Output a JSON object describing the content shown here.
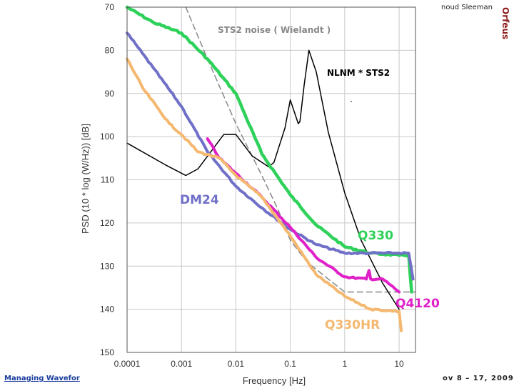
{
  "header": {
    "author": "noud Sleeman",
    "logo_text": "Orfeus"
  },
  "footer": {
    "left_text": "Managing Wavefor",
    "right_text": "ov 8 – 17, 2009"
  },
  "colors": {
    "sts2": "#888888",
    "nlnm": "#000000",
    "dm24": "#7070c8",
    "q330": "#2ed15a",
    "q4120": "#e020c8",
    "q330hr": "#f5b870",
    "grid": "#c8c8c8",
    "logo": "#8b1c1c"
  },
  "chart_data": {
    "type": "line",
    "xlabel": "Frequency   [Hz]",
    "ylabel": "PSD (10 * log (W/Hz))   [dB]",
    "x_scale": "log",
    "xlim": [
      0.0001,
      20
    ],
    "ylim": [
      150,
      70
    ],
    "x_ticks": [
      "0.0001",
      "0.001",
      "0.01",
      "0.1",
      "1",
      "10"
    ],
    "x_tick_values": [
      0.0001,
      0.001,
      0.01,
      0.1,
      1,
      10
    ],
    "y_ticks": [
      "70",
      "80",
      "90",
      "100",
      "110",
      "120",
      "130",
      "140",
      "150"
    ],
    "y_tick_values": [
      70,
      80,
      90,
      100,
      110,
      120,
      130,
      140,
      150
    ],
    "grid": true,
    "annotations": {
      "sts2": "STS2 noise ( Wielandt )",
      "nlnm": "NLNM * STS2",
      "dm24": "DM24",
      "q330": "Q330",
      "q4120": "Q4120",
      "q330hr": "Q330HR"
    },
    "series": [
      {
        "key": "sts2",
        "dashed": true,
        "x": [
          0.0012,
          0.003,
          0.01,
          0.03,
          0.06,
          0.1,
          0.2,
          0.5,
          1,
          2,
          5,
          10,
          20
        ],
        "y": [
          70,
          82,
          97,
          109,
          117,
          124,
          129,
          133,
          136,
          136,
          136,
          136,
          136
        ]
      },
      {
        "key": "nlnm",
        "dashed": false,
        "x": [
          0.0001,
          0.0005,
          0.0012,
          0.002,
          0.006,
          0.01,
          0.02,
          0.04,
          0.05,
          0.08,
          0.1,
          0.14,
          0.15,
          0.18,
          0.22,
          0.3,
          0.5,
          1,
          2,
          5,
          10
        ],
        "y": [
          101.5,
          106.5,
          109,
          107.5,
          99.5,
          99.5,
          104.5,
          107,
          106,
          98,
          91.5,
          97,
          96.5,
          88,
          80,
          85,
          99,
          113,
          124,
          134,
          140
        ]
      },
      {
        "key": "q330",
        "dashed": false,
        "x": [
          0.0001,
          0.0003,
          0.001,
          0.003,
          0.01,
          0.03,
          0.1,
          0.3,
          1,
          3,
          10,
          15,
          17
        ],
        "y": [
          70,
          73.5,
          76,
          82,
          90,
          104,
          113.5,
          120.5,
          125.5,
          127,
          127.5,
          127.5,
          136
        ]
      },
      {
        "key": "dm24",
        "dashed": false,
        "x": [
          0.0001,
          0.0003,
          0.001,
          0.003,
          0.01,
          0.03,
          0.1,
          0.3,
          1,
          3,
          10,
          15,
          18
        ],
        "y": [
          76,
          84,
          93,
          103.5,
          111.5,
          116.5,
          121.5,
          125,
          127,
          127,
          127,
          127,
          133
        ]
      },
      {
        "key": "q4120",
        "dashed": false,
        "x": [
          0.003,
          0.005,
          0.01,
          0.03,
          0.1,
          0.3,
          1,
          2.5,
          2.8,
          3,
          5,
          10
        ],
        "y": [
          100.5,
          105,
          108.5,
          114,
          121,
          128,
          132.5,
          133,
          131,
          133,
          133,
          136
        ]
      },
      {
        "key": "q330hr",
        "dashed": false,
        "x": [
          0.0001,
          0.0002,
          0.0006,
          0.001,
          0.002,
          0.005,
          0.01,
          0.03,
          0.1,
          0.3,
          1,
          3,
          10,
          11
        ],
        "y": [
          82,
          89,
          97,
          99.5,
          103.5,
          105,
          109,
          114,
          123,
          132,
          137,
          140,
          140.5,
          145
        ]
      }
    ]
  }
}
